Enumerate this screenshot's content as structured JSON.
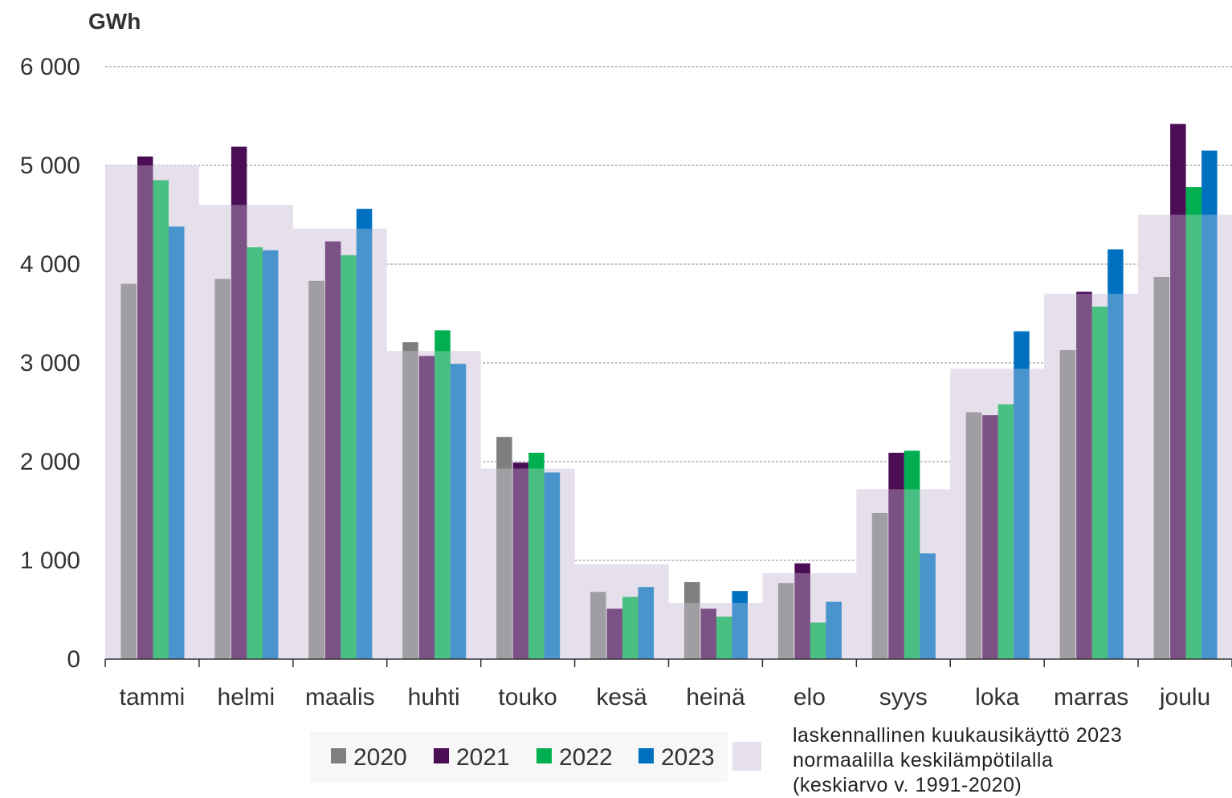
{
  "chart_data": {
    "type": "bar",
    "ylabel": "GWh",
    "ylim": [
      0,
      6000
    ],
    "yticks": [
      0,
      1000,
      2000,
      3000,
      4000,
      5000,
      6000
    ],
    "ytick_labels": [
      "0",
      "1 000",
      "2 000",
      "3 000",
      "4 000",
      "5 000",
      "6 000"
    ],
    "grid": "horizontal dashed",
    "categories": [
      "tammi",
      "helmi",
      "maalis",
      "huhti",
      "touko",
      "kesä",
      "heinä",
      "elo",
      "syys",
      "loka",
      "marras",
      "joulu"
    ],
    "series": [
      {
        "name": "2020",
        "color": "#7f7f7f",
        "values": [
          3800,
          3850,
          3830,
          3210,
          2250,
          680,
          780,
          770,
          1480,
          2500,
          3130,
          3870
        ]
      },
      {
        "name": "2021",
        "color": "#4b0e55",
        "values": [
          5090,
          5190,
          4230,
          3070,
          1990,
          510,
          510,
          970,
          2090,
          2470,
          3720,
          5420
        ]
      },
      {
        "name": "2022",
        "color": "#00b050",
        "values": [
          4850,
          4170,
          4090,
          3330,
          2090,
          630,
          430,
          370,
          2110,
          2580,
          3570,
          4780
        ]
      },
      {
        "name": "2023",
        "color": "#0070c0",
        "values": [
          4380,
          4140,
          4560,
          2990,
          1890,
          730,
          690,
          580,
          1070,
          3320,
          4150,
          5150
        ]
      }
    ],
    "background_series": {
      "name": "laskennallinen kuukausikäyttö 2023 normaalilla keskilämpötilalla (keskiarvo v. 1991-2020)",
      "color": "#e6dfec",
      "values": [
        5000,
        4600,
        4360,
        3120,
        1930,
        960,
        570,
        870,
        1720,
        2940,
        3700,
        4500
      ]
    },
    "legend": {
      "placement": "bottom",
      "note_lines": [
        "laskennallinen kuukausikäyttö 2023",
        "normaalilla keskilämpötilalla",
        "(keskiarvo v. 1991-2020)"
      ]
    }
  }
}
